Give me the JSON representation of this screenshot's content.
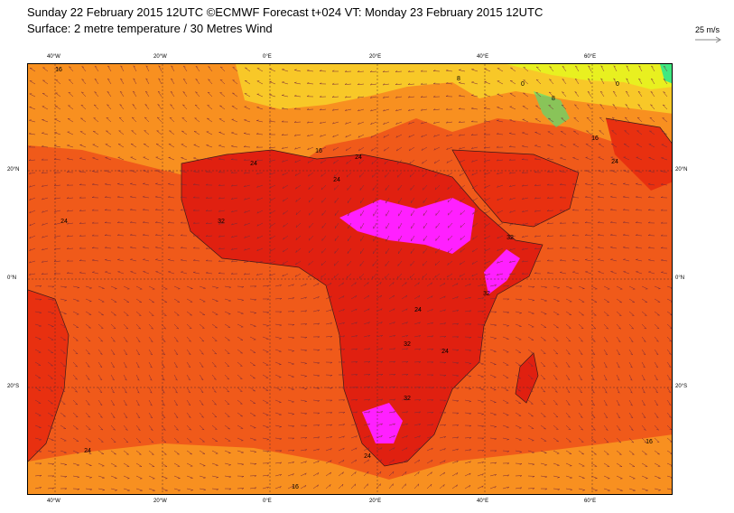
{
  "header": {
    "line1": "Sunday 22 February 2015 12UTC ©ECMWF Forecast t+024 VT: Monday 23 February 2015 12UTC",
    "line2": "Surface: 2 metre temperature / 30 Metres Wind"
  },
  "wind_scale": {
    "label": "25 m/s"
  },
  "axes": {
    "lon_labels_top": [
      "40°W",
      "20°W",
      "0°E",
      "20°E",
      "40°E",
      "60°E"
    ],
    "lon_labels_bottom": [
      "40°W",
      "20°W",
      "0°E",
      "20°E",
      "40°E",
      "60°E"
    ],
    "lat_labels_left": [
      "20°N",
      "0°N",
      "20°S"
    ],
    "lat_labels_right": [
      "20°N",
      "0°N",
      "20°S"
    ]
  },
  "contour_labels": [
    "16",
    "8",
    "0",
    "8",
    "0",
    "16",
    "24",
    "16",
    "24",
    "24",
    "24",
    "32",
    "24",
    "32",
    "32",
    "24",
    "32",
    "24",
    "32",
    "24",
    "24",
    "16",
    "16"
  ],
  "colors": {
    "ocean_warm": "#f05a1a",
    "ocean_hot": "#e83010",
    "land_hot": "#e02010",
    "very_hot": "#ff20ff",
    "mild": "#f89020",
    "cool": "#f8c828",
    "cold": "#e8f020",
    "coldest": "#40e880",
    "arrows": "#7a2a3a"
  }
}
